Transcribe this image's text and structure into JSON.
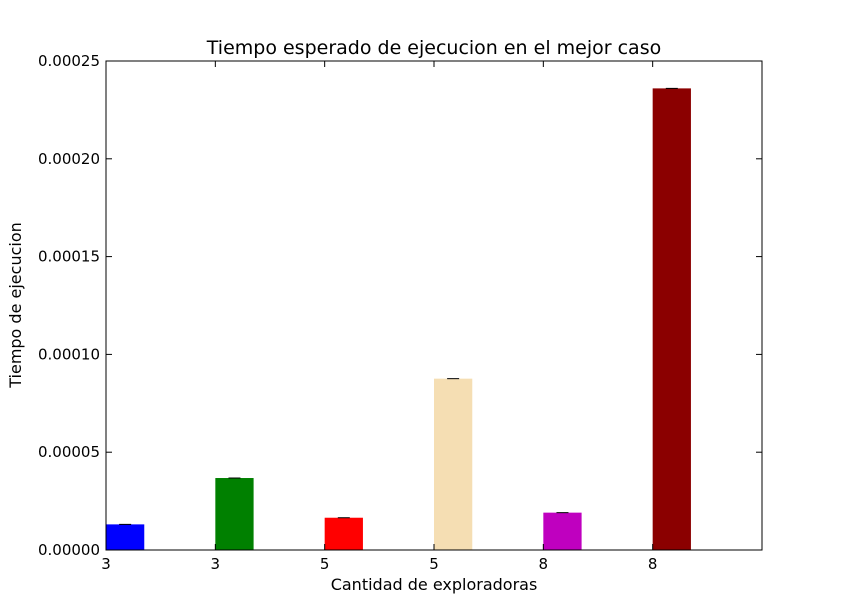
{
  "chart_data": {
    "type": "bar",
    "title": "Tiempo esperado de ejecucion en el mejor caso",
    "xlabel": "Cantidad de exploradoras",
    "ylabel": "Tiempo de ejecucion",
    "categories": [
      "3",
      "3",
      "5",
      "5",
      "8",
      "8"
    ],
    "values": [
      1.31e-05,
      3.68e-05,
      1.65e-05,
      8.76e-05,
      1.91e-05,
      0.000236
    ],
    "colors": [
      "#0000ff",
      "#008000",
      "#ff0000",
      "#f5deb3",
      "#bf00bf",
      "#8b0000"
    ],
    "ylim": [
      0,
      0.00025
    ],
    "xlim": [
      0,
      6
    ],
    "yticks": [
      "0.00000",
      "0.00005",
      "0.00010",
      "0.00015",
      "0.00020",
      "0.00025"
    ],
    "ytick_values": [
      0,
      5e-05,
      0.0001,
      0.00015,
      0.0002,
      0.00025
    ],
    "grid": false,
    "error_bars": true
  }
}
